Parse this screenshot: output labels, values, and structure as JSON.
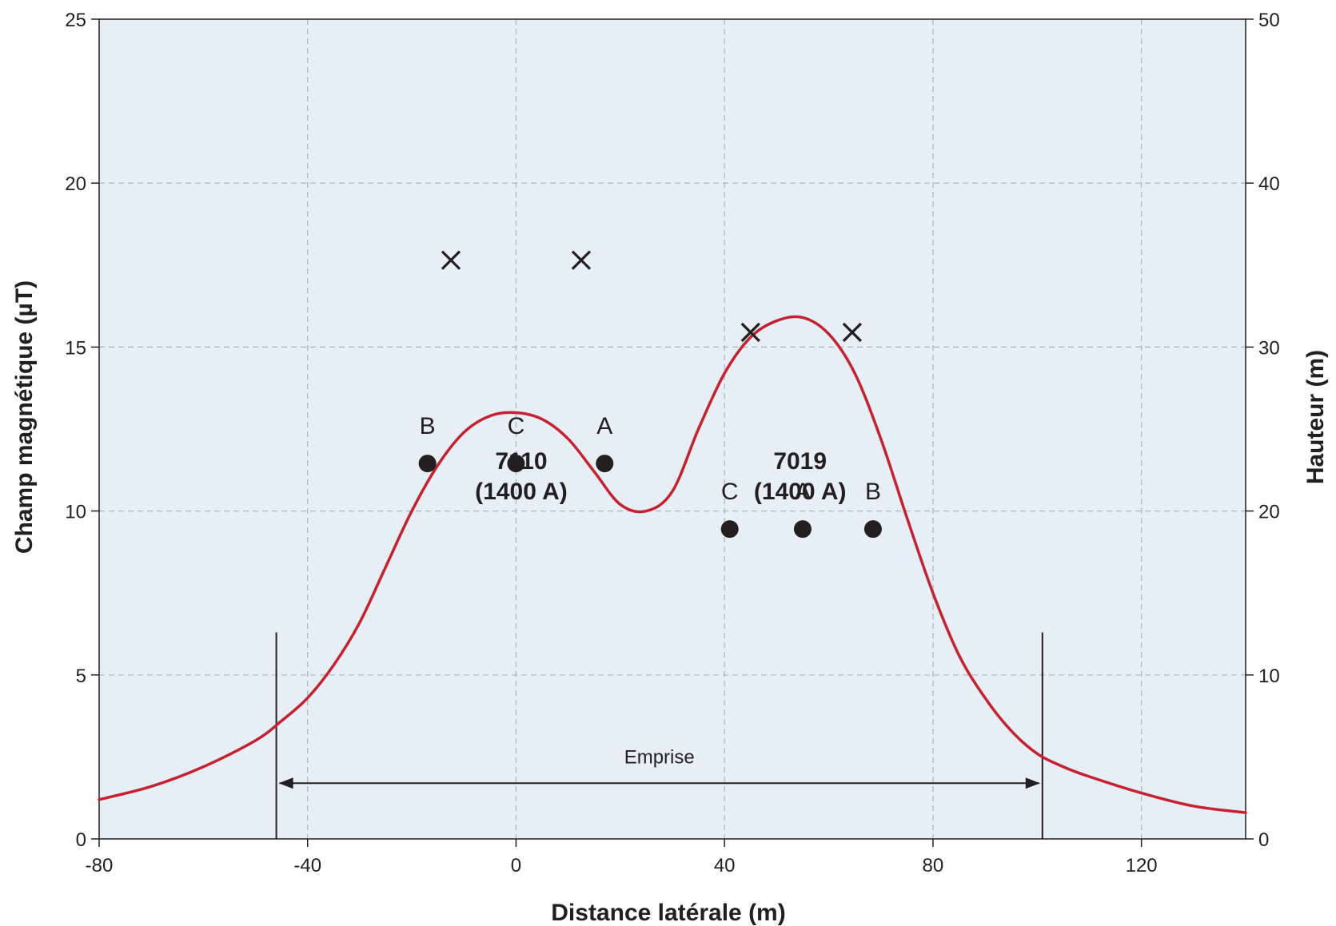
{
  "chart_data": {
    "type": "line",
    "title": "",
    "xlabel": "Distance latérale (m)",
    "ylabel": "Champ magnétique (µT)",
    "y2label": "Hauteur (m)",
    "xlim": [
      -80,
      140
    ],
    "ylim": [
      0,
      25
    ],
    "y2lim": [
      0,
      50
    ],
    "x_ticks": [
      -80,
      -40,
      0,
      40,
      80,
      120
    ],
    "y_ticks": [
      0,
      5,
      10,
      15,
      20,
      25
    ],
    "y2_ticks": [
      0,
      10,
      20,
      30,
      40,
      50
    ],
    "grid": true,
    "grid_x": [
      -40,
      0,
      40,
      80,
      120
    ],
    "grid_y": [
      5,
      10,
      15,
      20
    ],
    "colors": {
      "plot_background": "#e6eef6",
      "curve": "#c8202f",
      "markers": "#231f20",
      "grid": "#a9b3bd"
    },
    "series": [
      {
        "values_axis": "left",
        "x": [
          -80,
          -70,
          -60,
          -50,
          -45,
          -40,
          -35,
          -30,
          -25,
          -20,
          -15,
          -10,
          -5,
          0,
          5,
          10,
          15,
          20,
          25,
          30,
          35,
          40,
          45,
          50,
          55,
          60,
          65,
          70,
          75,
          80,
          85,
          90,
          95,
          100,
          105,
          110,
          120,
          130,
          140
        ],
        "y": [
          1.2,
          1.6,
          2.2,
          3.0,
          3.6,
          4.3,
          5.3,
          6.6,
          8.3,
          10.0,
          11.4,
          12.4,
          12.9,
          13.0,
          12.8,
          12.2,
          11.2,
          10.2,
          10.0,
          10.6,
          12.5,
          14.2,
          15.3,
          15.8,
          15.9,
          15.4,
          14.2,
          12.2,
          9.8,
          7.5,
          5.6,
          4.3,
          3.3,
          2.6,
          2.2,
          1.9,
          1.4,
          1.0,
          0.8
        ]
      }
    ],
    "conductors": {
      "values_axis": "right",
      "x": [
        -12.5,
        12.5,
        45,
        64.5
      ],
      "y": [
        35.3,
        35.3,
        30.9,
        30.9
      ]
    },
    "phases": {
      "values_axis": "right",
      "points": [
        {
          "label": "B",
          "x": -17,
          "y": 22.9
        },
        {
          "label": "C",
          "x": 0,
          "y": 22.9
        },
        {
          "label": "A",
          "x": 17,
          "y": 22.9
        },
        {
          "label": "C",
          "x": 41,
          "y": 18.9
        },
        {
          "label": "A",
          "x": 55,
          "y": 18.9
        },
        {
          "label": "B",
          "x": 68.5,
          "y": 18.9
        }
      ]
    },
    "annotations": {
      "circuits": [
        {
          "x": 1,
          "y": 20.7,
          "line1": "7110",
          "line2": "(1400 A)"
        },
        {
          "x": 54.5,
          "y": 20.7,
          "line1": "7019",
          "line2": "(1400 A)"
        }
      ],
      "emprise": {
        "label": "Emprise",
        "x_start": -46,
        "x_end": 101,
        "arrow_y": 1.7,
        "label_y": 2.3,
        "marker_top_y": 6.3
      }
    }
  }
}
